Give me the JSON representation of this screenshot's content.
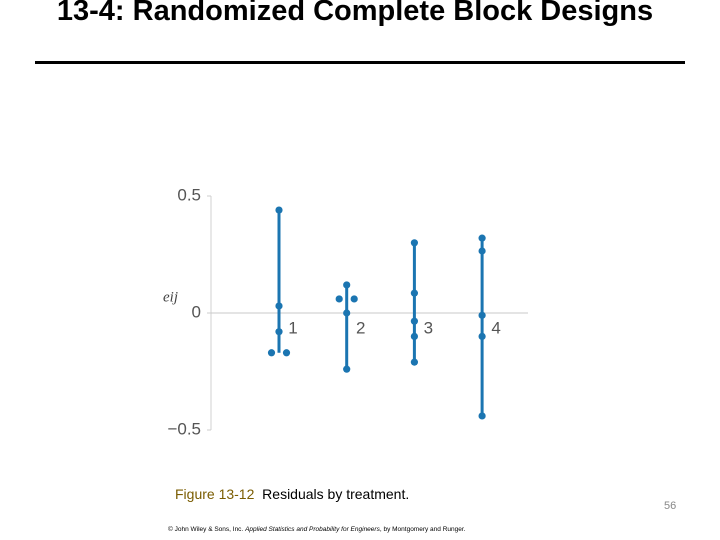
{
  "slide": {
    "title": "13-4: Randomized Complete Block Designs",
    "caption_label": "Figure 13-12",
    "caption_text": "Residuals by treatment.",
    "page_number": "56",
    "footer_prefix": "© John Wiley & Sons, Inc.",
    "footer_book": "Applied Statistics and Probability for Engineers",
    "footer_suffix": ", by Montgomery and Runger."
  },
  "chart_data": {
    "type": "strip",
    "y_label": "eij",
    "categories": [
      "1",
      "2",
      "3",
      "4"
    ],
    "values": [
      [
        0.44,
        0.03,
        -0.08,
        -0.17,
        -0.17
      ],
      [
        0.12,
        0.06,
        0.06,
        0.0,
        -0.24
      ],
      [
        0.3,
        0.085,
        -0.035,
        -0.1,
        -0.21
      ],
      [
        0.32,
        0.265,
        -0.01,
        -0.1,
        -0.44
      ]
    ],
    "color": "#1b75b1",
    "ylim": [
      -0.5,
      0.5
    ],
    "yticks": [
      {
        "value": -0.5,
        "label": "−0.5"
      },
      0,
      0.5
    ]
  }
}
